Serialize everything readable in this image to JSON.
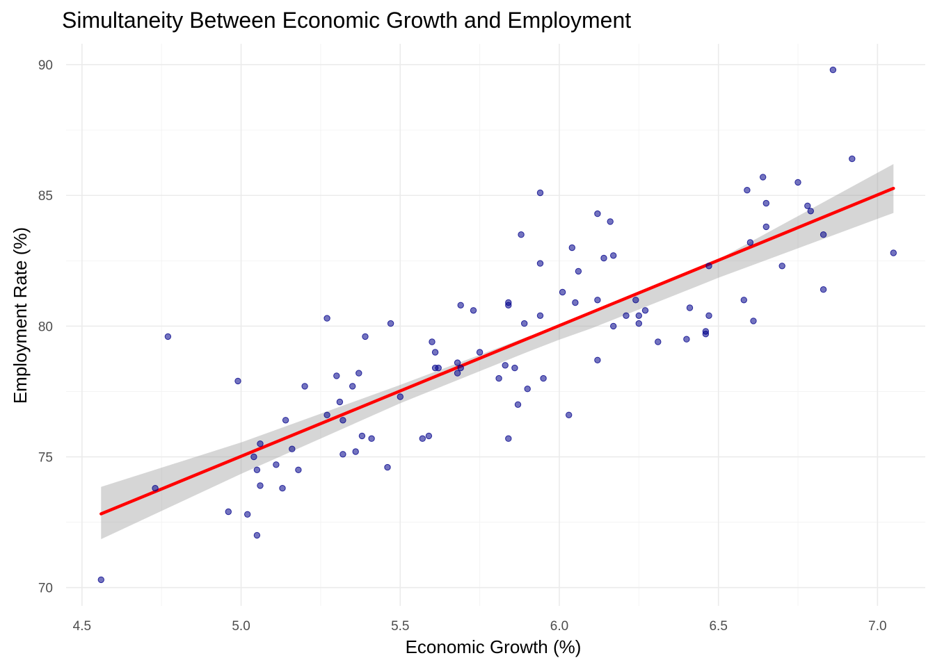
{
  "chart_data": {
    "type": "scatter",
    "title": "Simultaneity Between Economic Growth and Employment",
    "xlabel": "Economic Growth (%)",
    "ylabel": "Employment Rate (%)",
    "xlim": [
      4.45,
      7.15
    ],
    "ylim": [
      69.3,
      90.8
    ],
    "xticks": [
      4.5,
      5.0,
      5.5,
      6.0,
      6.5,
      7.0
    ],
    "xtick_labels": [
      "4.5",
      "5.0",
      "5.5",
      "6.0",
      "6.5",
      "7.0"
    ],
    "yticks": [
      70,
      75,
      80,
      85,
      90
    ],
    "ytick_labels": [
      "70",
      "75",
      "80",
      "85",
      "90"
    ],
    "grid": true,
    "colors": {
      "points": "#00008b",
      "fit_line": "#ff0000",
      "confidence_band": "#999999"
    },
    "points": [
      {
        "x": 4.56,
        "y": 70.3
      },
      {
        "x": 4.73,
        "y": 73.8
      },
      {
        "x": 4.77,
        "y": 79.6
      },
      {
        "x": 4.96,
        "y": 72.9
      },
      {
        "x": 4.99,
        "y": 77.9
      },
      {
        "x": 5.02,
        "y": 72.8
      },
      {
        "x": 5.04,
        "y": 75.0
      },
      {
        "x": 5.05,
        "y": 72.0
      },
      {
        "x": 5.05,
        "y": 74.5
      },
      {
        "x": 5.06,
        "y": 73.9
      },
      {
        "x": 5.06,
        "y": 75.5
      },
      {
        "x": 5.11,
        "y": 74.7
      },
      {
        "x": 5.13,
        "y": 73.8
      },
      {
        "x": 5.14,
        "y": 76.4
      },
      {
        "x": 5.16,
        "y": 75.3
      },
      {
        "x": 5.18,
        "y": 74.5
      },
      {
        "x": 5.2,
        "y": 77.7
      },
      {
        "x": 5.27,
        "y": 76.6
      },
      {
        "x": 5.27,
        "y": 80.3
      },
      {
        "x": 5.3,
        "y": 78.1
      },
      {
        "x": 5.31,
        "y": 77.1
      },
      {
        "x": 5.32,
        "y": 76.4
      },
      {
        "x": 5.32,
        "y": 75.1
      },
      {
        "x": 5.35,
        "y": 77.7
      },
      {
        "x": 5.36,
        "y": 75.2
      },
      {
        "x": 5.37,
        "y": 78.2
      },
      {
        "x": 5.38,
        "y": 75.8
      },
      {
        "x": 5.39,
        "y": 79.6
      },
      {
        "x": 5.41,
        "y": 75.7
      },
      {
        "x": 5.46,
        "y": 74.6
      },
      {
        "x": 5.47,
        "y": 80.1
      },
      {
        "x": 5.5,
        "y": 77.3
      },
      {
        "x": 5.57,
        "y": 75.7
      },
      {
        "x": 5.59,
        "y": 75.8
      },
      {
        "x": 5.6,
        "y": 79.4
      },
      {
        "x": 5.61,
        "y": 78.4
      },
      {
        "x": 5.61,
        "y": 79.0
      },
      {
        "x": 5.62,
        "y": 78.4
      },
      {
        "x": 5.68,
        "y": 78.2
      },
      {
        "x": 5.68,
        "y": 78.6
      },
      {
        "x": 5.69,
        "y": 80.8
      },
      {
        "x": 5.69,
        "y": 78.4
      },
      {
        "x": 5.73,
        "y": 80.6
      },
      {
        "x": 5.75,
        "y": 79.0
      },
      {
        "x": 5.81,
        "y": 78.0
      },
      {
        "x": 5.83,
        "y": 78.5
      },
      {
        "x": 5.84,
        "y": 80.8
      },
      {
        "x": 5.84,
        "y": 80.9
      },
      {
        "x": 5.84,
        "y": 75.7
      },
      {
        "x": 5.86,
        "y": 78.4
      },
      {
        "x": 5.87,
        "y": 77.0
      },
      {
        "x": 5.88,
        "y": 83.5
      },
      {
        "x": 5.89,
        "y": 80.1
      },
      {
        "x": 5.9,
        "y": 77.6
      },
      {
        "x": 5.94,
        "y": 85.1
      },
      {
        "x": 5.94,
        "y": 82.4
      },
      {
        "x": 5.94,
        "y": 80.4
      },
      {
        "x": 5.95,
        "y": 78.0
      },
      {
        "x": 6.01,
        "y": 81.3
      },
      {
        "x": 6.03,
        "y": 76.6
      },
      {
        "x": 6.04,
        "y": 83.0
      },
      {
        "x": 6.05,
        "y": 80.9
      },
      {
        "x": 6.06,
        "y": 82.1
      },
      {
        "x": 6.12,
        "y": 78.7
      },
      {
        "x": 6.12,
        "y": 84.3
      },
      {
        "x": 6.12,
        "y": 81.0
      },
      {
        "x": 6.14,
        "y": 82.6
      },
      {
        "x": 6.16,
        "y": 84.0
      },
      {
        "x": 6.17,
        "y": 80.0
      },
      {
        "x": 6.17,
        "y": 82.7
      },
      {
        "x": 6.21,
        "y": 80.4
      },
      {
        "x": 6.24,
        "y": 81.0
      },
      {
        "x": 6.25,
        "y": 80.4
      },
      {
        "x": 6.25,
        "y": 80.1
      },
      {
        "x": 6.27,
        "y": 80.6
      },
      {
        "x": 6.31,
        "y": 79.4
      },
      {
        "x": 6.4,
        "y": 79.5
      },
      {
        "x": 6.41,
        "y": 80.7
      },
      {
        "x": 6.46,
        "y": 79.8
      },
      {
        "x": 6.46,
        "y": 79.7
      },
      {
        "x": 6.47,
        "y": 82.3
      },
      {
        "x": 6.47,
        "y": 80.4
      },
      {
        "x": 6.58,
        "y": 81.0
      },
      {
        "x": 6.59,
        "y": 85.2
      },
      {
        "x": 6.6,
        "y": 83.2
      },
      {
        "x": 6.61,
        "y": 80.2
      },
      {
        "x": 6.64,
        "y": 85.7
      },
      {
        "x": 6.65,
        "y": 83.8
      },
      {
        "x": 6.65,
        "y": 84.7
      },
      {
        "x": 6.7,
        "y": 82.3
      },
      {
        "x": 6.75,
        "y": 85.5
      },
      {
        "x": 6.78,
        "y": 84.6
      },
      {
        "x": 6.79,
        "y": 84.4
      },
      {
        "x": 6.83,
        "y": 83.5
      },
      {
        "x": 6.83,
        "y": 81.4
      },
      {
        "x": 6.86,
        "y": 89.8
      },
      {
        "x": 6.92,
        "y": 86.4
      },
      {
        "x": 7.05,
        "y": 82.8
      }
    ],
    "fit_line": {
      "x": [
        4.56,
        7.05
      ],
      "y": [
        72.82,
        85.27
      ]
    },
    "confidence_band": {
      "x": [
        4.56,
        5.0,
        5.5,
        5.9,
        6.0,
        6.1,
        6.5,
        7.05
      ],
      "upper": [
        73.85,
        75.55,
        77.75,
        79.59,
        80.05,
        80.49,
        82.55,
        86.2
      ],
      "lower": [
        71.85,
        74.35,
        77.05,
        79.01,
        79.48,
        79.91,
        81.85,
        84.33
      ]
    }
  }
}
